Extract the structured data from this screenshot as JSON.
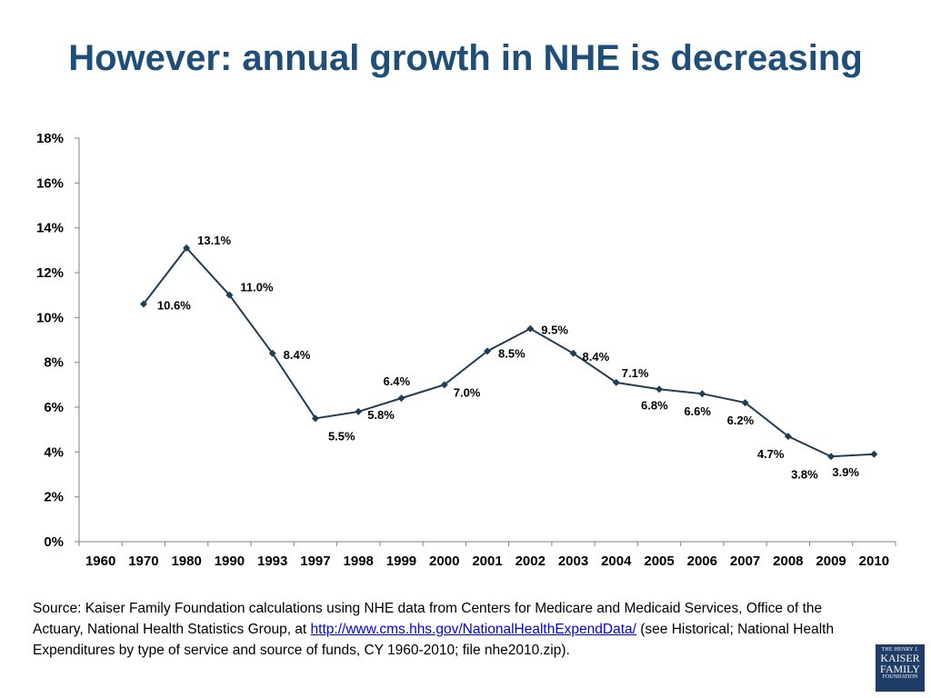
{
  "slide": {
    "title": "However: annual growth in NHE is decreasing"
  },
  "chart_data": {
    "type": "line",
    "title": "",
    "xlabel": "",
    "ylabel": "",
    "categories": [
      "1960",
      "1970",
      "1980",
      "1990",
      "1993",
      "1997",
      "1998",
      "1999",
      "2000",
      "2001",
      "2002",
      "2003",
      "2004",
      "2005",
      "2006",
      "2007",
      "2008",
      "2009",
      "2010"
    ],
    "y_ticks": [
      "0%",
      "2%",
      "4%",
      "6%",
      "8%",
      "10%",
      "12%",
      "14%",
      "16%",
      "18%"
    ],
    "ylim": [
      0,
      18
    ],
    "series": [
      {
        "values": [
          null,
          10.6,
          13.1,
          11.0,
          8.4,
          5.5,
          5.8,
          6.4,
          7.0,
          8.5,
          9.5,
          8.4,
          7.1,
          6.8,
          6.6,
          6.2,
          4.7,
          3.8,
          3.9
        ],
        "labels": [
          "",
          "10.6%",
          "13.1%",
          "11.0%",
          "8.4%",
          "5.5%",
          "5.8%",
          "6.4%",
          "7.0%",
          "8.5%",
          "9.5%",
          "8.4%",
          "7.1%",
          "6.8%",
          "6.6%",
          "6.2%",
          "4.7%",
          "3.8%",
          "3.9%"
        ],
        "color": "#1f3d55"
      }
    ],
    "grid": false,
    "legend": "none"
  },
  "source": {
    "text_before": "Source: Kaiser Family Foundation calculations using NHE data from Centers for Medicare and Medicaid Services, Office of the Actuary, National Health Statistics Group, at ",
    "link": "http://www.cms.hhs.gov/NationalHealthExpendData/",
    "text_after": " (see Historical; National Health Expenditures by type of service and source of funds, CY 1960-2010; file nhe2010.zip)."
  },
  "logo": {
    "line1": "THE HENRY J.",
    "line2": "KAISER",
    "line3": "FAMILY",
    "line4": "FOUNDATION"
  }
}
